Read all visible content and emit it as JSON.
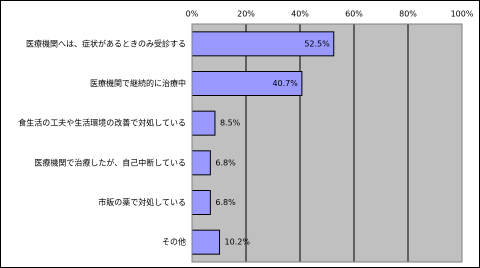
{
  "chart_data": {
    "type": "bar",
    "orientation": "horizontal",
    "categories": [
      "医療機関へは、症状があるときのみ受診する",
      "医療機関で継続的に治療中",
      "食生活の工夫や生活環境の改善で対処している",
      "医療機関で治療したが、自己中断している",
      "市販の薬で対処している",
      "その他"
    ],
    "values": [
      52.5,
      40.7,
      8.5,
      6.8,
      6.8,
      10.2
    ],
    "value_labels": [
      "52.5%",
      "40.7%",
      "8.5%",
      "6.8%",
      "6.8%",
      "10.2%"
    ],
    "color": "#9999ff",
    "xlim": [
      0,
      100
    ],
    "xticks": [
      {
        "value": 0,
        "label": "0%"
      },
      {
        "value": 20,
        "label": "20%"
      },
      {
        "value": 40,
        "label": "40%"
      },
      {
        "value": 60,
        "label": "60%"
      },
      {
        "value": 80,
        "label": "80%"
      },
      {
        "value": 100,
        "label": "100%"
      }
    ],
    "grid": true
  }
}
